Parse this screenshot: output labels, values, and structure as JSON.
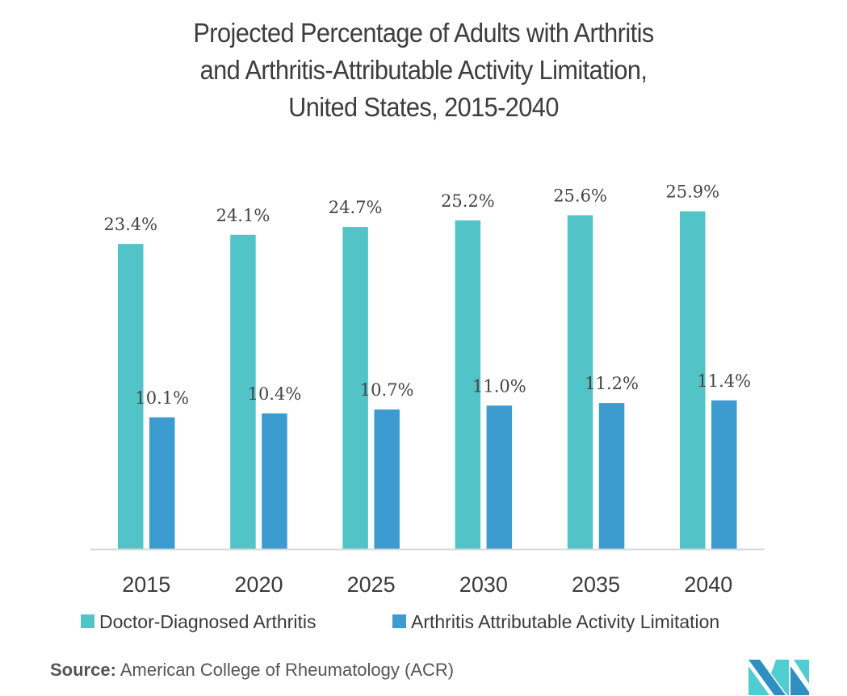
{
  "chart_data": {
    "type": "bar",
    "title": "Projected Percentage of Adults with Arthritis and Arthritis-Attributable Activity Limitation, United States, 2015-2040",
    "title_lines": [
      "Projected Percentage of Adults with Arthritis",
      "and Arthritis-Attributable Activity Limitation,",
      "United States, 2015-2040"
    ],
    "categories": [
      "2015",
      "2020",
      "2025",
      "2030",
      "2035",
      "2040"
    ],
    "series": [
      {
        "name": "Doctor-Diagnosed Arthritis",
        "color": "#52c4c7",
        "values": [
          23.4,
          24.1,
          24.7,
          25.2,
          25.6,
          25.9
        ],
        "labels": [
          "23.4%",
          "24.1%",
          "24.7%",
          "25.2%",
          "25.6%",
          "25.9%"
        ]
      },
      {
        "name": "Arthritis Attributable Activity Limitation",
        "color": "#3c9ccf",
        "values": [
          10.1,
          10.4,
          10.7,
          11.0,
          11.2,
          11.4
        ],
        "labels": [
          "10.1%",
          "10.4%",
          "10.7%",
          "11.0%",
          "11.2%",
          "11.4%"
        ]
      }
    ],
    "xlabel": "",
    "ylabel": "",
    "ylim": [
      0,
      30
    ],
    "grid": false,
    "y_axis_visible": false,
    "legend_position": "bottom"
  },
  "source": {
    "label": "Source:",
    "text": "American College of Rheumatology (ACR)"
  },
  "logo": {
    "name": "mordor-intelligence-logo",
    "colors": [
      "#2e8fc0",
      "#4fcdd0"
    ]
  }
}
